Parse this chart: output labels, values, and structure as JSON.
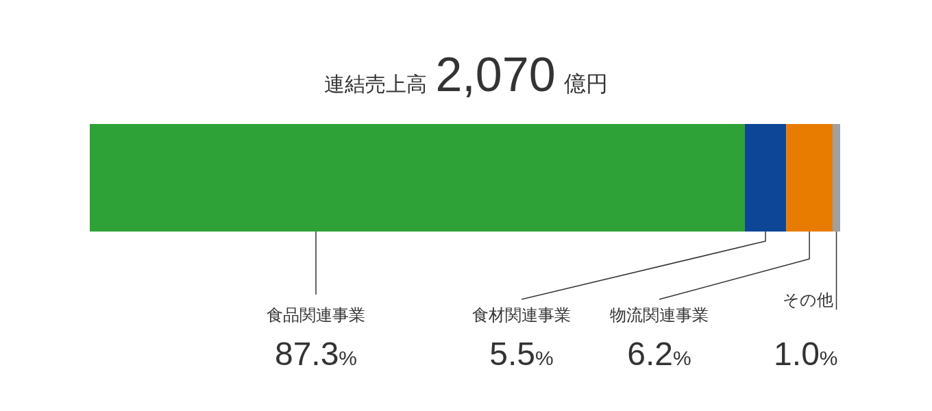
{
  "chart_data": {
    "type": "bar",
    "orientation": "horizontal",
    "stacked": true,
    "title": "連結売上高 2,070 億円",
    "categories": [
      null
    ],
    "xlim": [
      0,
      100
    ],
    "tick_labels": false,
    "series": [
      {
        "name": "食品関連事業",
        "color": "#2ea236",
        "values": [
          87.3
        ],
        "value_labels": [
          "87.3%"
        ]
      },
      {
        "name": "食材関連事業",
        "color": "#0e4697",
        "values": [
          5.5
        ],
        "value_labels": [
          "5.5%"
        ]
      },
      {
        "name": "物流関連事業",
        "color": "#e87c00",
        "values": [
          6.2
        ],
        "value_labels": [
          "6.2%"
        ]
      },
      {
        "name": "その他",
        "color": "#a0a0a0",
        "values": [
          1.0
        ],
        "value_labels": [
          "1.0%"
        ]
      }
    ]
  }
}
